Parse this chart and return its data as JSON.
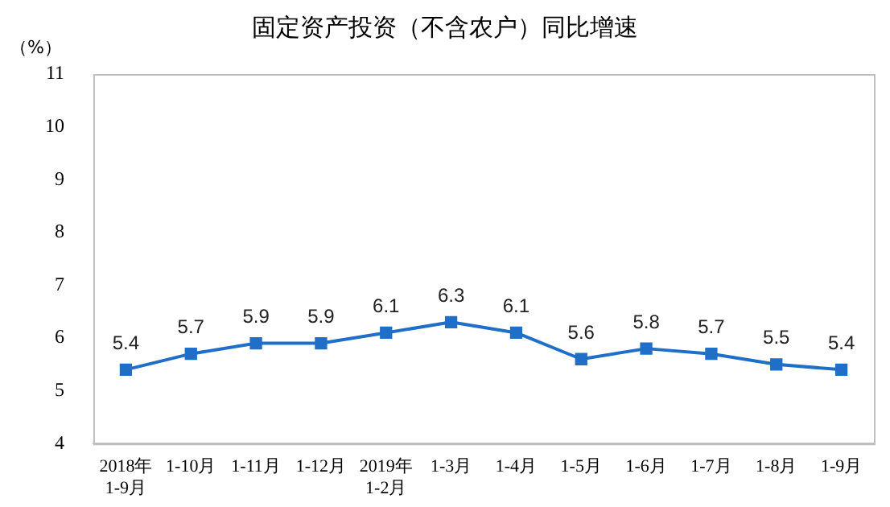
{
  "chart_data": {
    "type": "line",
    "title": "固定资产投资（不含农户）同比增速",
    "ylabel": "（%）",
    "categories": [
      "2018年\n1-9月",
      "1-10月",
      "1-11月",
      "1-12月",
      "2019年\n1-2月",
      "1-3月",
      "1-4月",
      "1-5月",
      "1-6月",
      "1-7月",
      "1-8月",
      "1-9月"
    ],
    "series": [
      {
        "color": "#1f6ec8",
        "values": [
          5.4,
          5.7,
          5.9,
          5.9,
          6.1,
          6.3,
          6.1,
          5.6,
          5.8,
          5.7,
          5.5,
          5.4
        ]
      }
    ],
    "ylim": [
      4,
      11
    ],
    "yticks": [
      4,
      5,
      6,
      7,
      8,
      9,
      10,
      11
    ],
    "grid": false,
    "legend": false,
    "marker": "square",
    "line_style": "solid",
    "data_labels": true
  }
}
